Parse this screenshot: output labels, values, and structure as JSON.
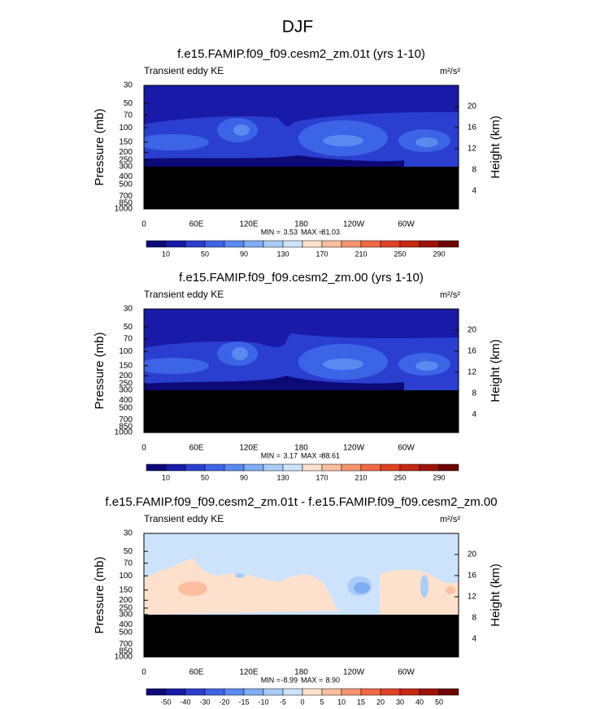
{
  "title": "DJF",
  "chart_data": [
    {
      "type": "contour",
      "title": "f.e15.FAMIP.f09_f09.cesm2_zm.01t (yrs 1-10)",
      "subtitle": "Transient eddy KE",
      "units": "m²/s²",
      "ylabel": "Pressure (mb)",
      "y2label": "Height (km)",
      "ylog": true,
      "xlim": [
        0,
        360
      ],
      "xticks": [
        0,
        {
          "value": 60,
          "label": "60E"
        },
        {
          "value": 120,
          "label": "120E"
        },
        180,
        {
          "value": 240,
          "label": "120W"
        },
        {
          "value": 300,
          "label": "60W"
        }
      ],
      "ylim": [
        1000,
        30
      ],
      "yticks": [
        30,
        50,
        70,
        100,
        150,
        200,
        250,
        300,
        400,
        500,
        700,
        850,
        1000
      ],
      "y2lim": [
        0.6,
        24
      ],
      "y2ticks": [
        4,
        8,
        12,
        16,
        20
      ],
      "min_label": "MIN =",
      "min": {
        "value": 3.53,
        "label": "3.53"
      },
      "max_label": "MAX =",
      "max": {
        "value": 81.03,
        "label": "81.03"
      },
      "colorbar_colors": [
        "#0d0a78",
        "#1a1aa8",
        "#2a3fd0",
        "#3c64e6",
        "#5a8af0",
        "#7fadf5",
        "#a8cdf8",
        "#cde3fb",
        "#fde1cc",
        "#fbbf9f",
        "#f79570",
        "#ef6a43",
        "#df4223",
        "#c42712",
        "#9f1308",
        "#6e0303"
      ],
      "colorbar_labels": [
        10,
        null,
        50,
        null,
        90,
        null,
        130,
        null,
        170,
        null,
        210,
        null,
        250,
        null,
        290
      ]
    },
    {
      "type": "contour",
      "title": "f.e15.FAMIP.f09_f09.cesm2_zm.00 (yrs 1-10)",
      "subtitle": "Transient eddy KE",
      "units": "m²/s²",
      "ylabel": "Pressure (mb)",
      "y2label": "Height (km)",
      "ylog": true,
      "xlim": [
        0,
        360
      ],
      "xticks": [
        0,
        {
          "value": 60,
          "label": "60E"
        },
        {
          "value": 120,
          "label": "120E"
        },
        180,
        {
          "value": 240,
          "label": "120W"
        },
        {
          "value": 300,
          "label": "60W"
        }
      ],
      "ylim": [
        1000,
        30
      ],
      "yticks": [
        30,
        50,
        70,
        100,
        150,
        200,
        250,
        300,
        400,
        500,
        700,
        850,
        1000
      ],
      "y2lim": [
        0.6,
        24
      ],
      "y2ticks": [
        4,
        8,
        12,
        16,
        20
      ],
      "min_label": "MIN =",
      "min": {
        "value": 3.17,
        "label": "3.17"
      },
      "max_label": "MAX =",
      "max": {
        "value": 88.61,
        "label": "88.61"
      },
      "colorbar_colors": [
        "#0d0a78",
        "#1a1aa8",
        "#2a3fd0",
        "#3c64e6",
        "#5a8af0",
        "#7fadf5",
        "#a8cdf8",
        "#cde3fb",
        "#fde1cc",
        "#fbbf9f",
        "#f79570",
        "#ef6a43",
        "#df4223",
        "#c42712",
        "#9f1308",
        "#6e0303"
      ],
      "colorbar_labels": [
        10,
        null,
        50,
        null,
        90,
        null,
        130,
        null,
        170,
        null,
        210,
        null,
        250,
        null,
        290
      ]
    },
    {
      "type": "contour",
      "title": "f.e15.FAMIP.f09_f09.cesm2_zm.01t - f.e15.FAMIP.f09_f09.cesm2_zm.00",
      "subtitle": "Transient eddy KE",
      "units": "m²/s²",
      "ylabel": "Pressure (mb)",
      "y2label": "Height (km)",
      "ylog": true,
      "xlim": [
        0,
        360
      ],
      "xticks": [
        0,
        {
          "value": 60,
          "label": "60E"
        },
        {
          "value": 120,
          "label": "120E"
        },
        180,
        {
          "value": 240,
          "label": "120W"
        },
        {
          "value": 300,
          "label": "60W"
        }
      ],
      "ylim": [
        1000,
        30
      ],
      "yticks": [
        30,
        50,
        70,
        100,
        150,
        200,
        250,
        300,
        400,
        500,
        700,
        850,
        1000
      ],
      "y2lim": [
        0.6,
        24
      ],
      "y2ticks": [
        4,
        8,
        12,
        16,
        20
      ],
      "min_label": "MIN =",
      "min": {
        "value": -8.99,
        "label": "-8.99"
      },
      "max_label": "MAX =",
      "max": {
        "value": 8.9,
        "label": "8.90"
      },
      "colorbar_colors": [
        "#0d0a78",
        "#1a1aa8",
        "#2a3fd0",
        "#3c64e6",
        "#5a8af0",
        "#7fadf5",
        "#a8cdf8",
        "#cde3fb",
        "#fde1cc",
        "#fbbf9f",
        "#f79570",
        "#ef6a43",
        "#df4223",
        "#c42712",
        "#9f1308",
        "#6e0303"
      ],
      "colorbar_labels": [
        -50,
        -40,
        -30,
        -20,
        -15,
        -10,
        -5,
        0,
        5,
        10,
        15,
        20,
        30,
        40,
        50
      ]
    }
  ]
}
